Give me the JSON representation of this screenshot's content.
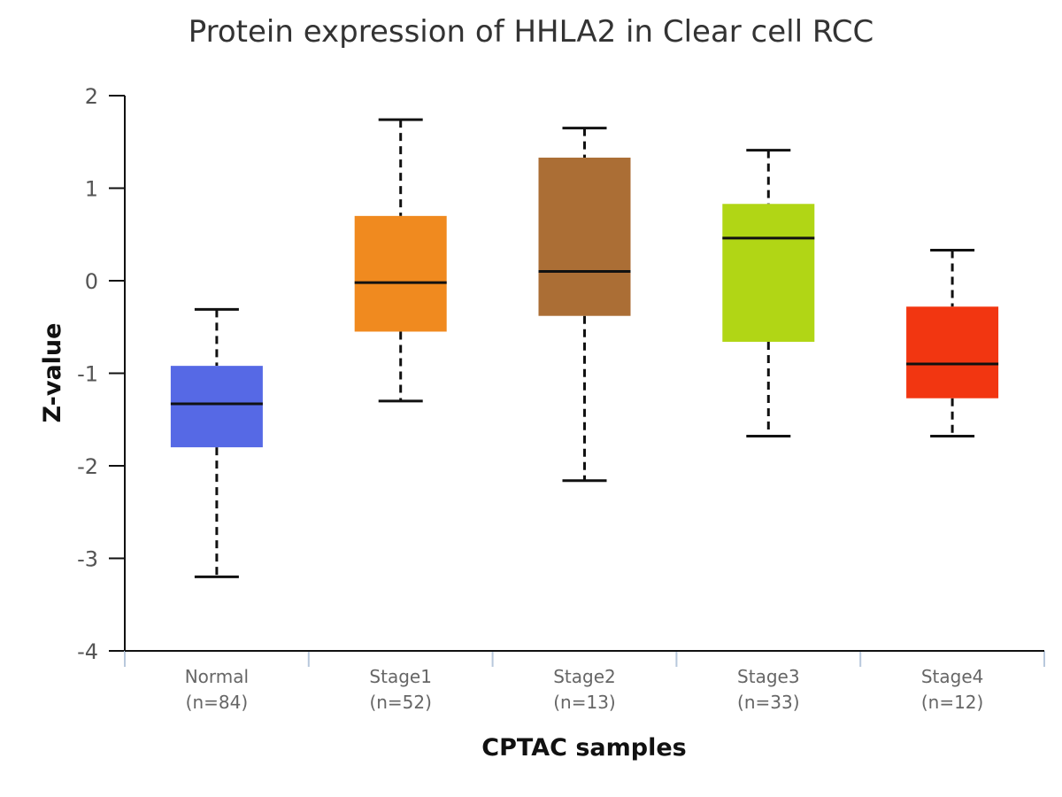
{
  "chart_data": {
    "type": "boxplot",
    "title": "Protein expression of HHLA2 in Clear cell RCC",
    "xlabel": "CPTAC samples",
    "ylabel": "Z-value",
    "ylim": [
      -4,
      2
    ],
    "yticks": [
      "2",
      "1",
      "0",
      "-1",
      "-2",
      "-3",
      "-4"
    ],
    "grid": false,
    "legend": "none",
    "categories": [
      {
        "name": "Normal",
        "n_label": "(n=84)",
        "color": "#5669e5",
        "whisker_low": -3.2,
        "q1": -1.8,
        "median": -1.33,
        "q3": -0.92,
        "whisker_high": -0.31
      },
      {
        "name": "Stage1",
        "n_label": "(n=52)",
        "color": "#f08a1f",
        "whisker_low": -1.3,
        "q1": -0.55,
        "median": -0.02,
        "q3": 0.7,
        "whisker_high": 1.74
      },
      {
        "name": "Stage2",
        "n_label": "(n=13)",
        "color": "#ab6e35",
        "whisker_low": -2.16,
        "q1": -0.38,
        "median": 0.1,
        "q3": 1.33,
        "whisker_high": 1.65
      },
      {
        "name": "Stage3",
        "n_label": "(n=33)",
        "color": "#b1d615",
        "whisker_low": -1.68,
        "q1": -0.66,
        "median": 0.46,
        "q3": 0.83,
        "whisker_high": 1.41
      },
      {
        "name": "Stage4",
        "n_label": "(n=12)",
        "color": "#f23611",
        "whisker_low": -1.68,
        "q1": -1.27,
        "median": -0.9,
        "q3": -0.28,
        "whisker_high": 0.33
      }
    ]
  }
}
